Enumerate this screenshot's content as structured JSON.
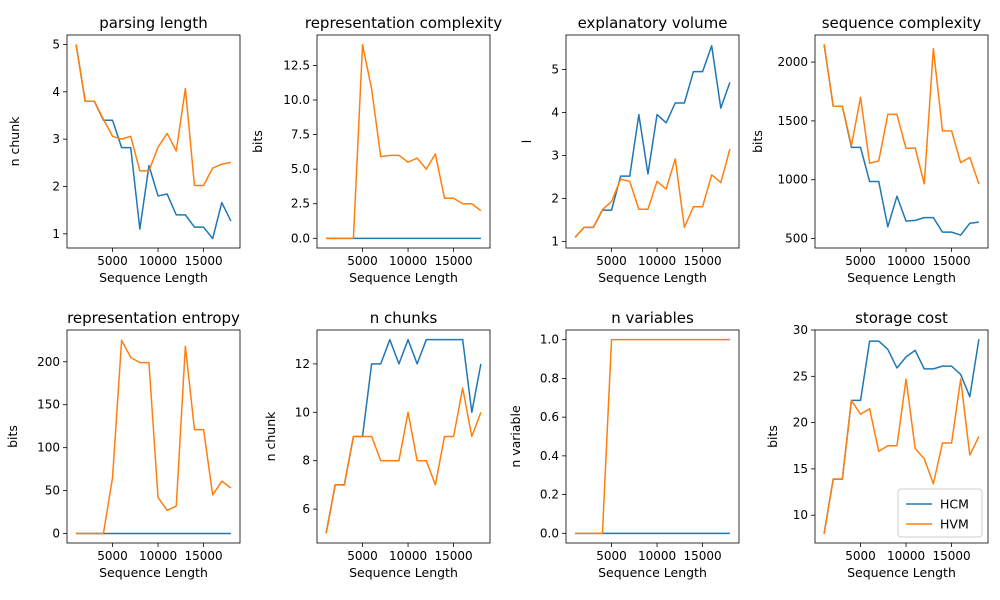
{
  "colors": {
    "HCM": "#1f77b4",
    "HVM": "#ff7f0e"
  },
  "legend": {
    "entries": [
      "HCM",
      "HVM"
    ],
    "placement": "lower right",
    "panel": 7
  },
  "chart_data": [
    {
      "type": "line",
      "title": "parsing length",
      "xlabel": "Sequence Length",
      "ylabel": "n chunk",
      "xlim": [
        0,
        19000
      ],
      "ylim": [
        0.7,
        5.2
      ],
      "xticks": [
        5000,
        10000,
        15000
      ],
      "yticks": [
        1,
        2,
        3,
        4,
        5
      ],
      "x": [
        1000,
        2000,
        3000,
        4000,
        5000,
        6000,
        7000,
        8000,
        9000,
        10000,
        11000,
        12000,
        13000,
        14000,
        15000,
        16000,
        17000,
        18000
      ],
      "series": [
        {
          "name": "HCM",
          "values": [
            5.0,
            3.8,
            3.8,
            3.4,
            3.4,
            2.82,
            2.82,
            1.1,
            2.44,
            1.8,
            1.84,
            1.4,
            1.4,
            1.14,
            1.14,
            0.9,
            1.66,
            1.27
          ]
        },
        {
          "name": "HVM",
          "values": [
            5.0,
            3.8,
            3.8,
            3.42,
            3.06,
            3.0,
            3.06,
            2.33,
            2.33,
            2.83,
            3.12,
            2.75,
            4.07,
            2.02,
            2.02,
            2.39,
            2.47,
            2.51
          ]
        }
      ]
    },
    {
      "type": "line",
      "title": "representation complexity",
      "xlabel": "Sequence Length",
      "ylabel": "bits",
      "xlim": [
        0,
        19000
      ],
      "ylim": [
        -0.7,
        14.7
      ],
      "xticks": [
        5000,
        10000,
        15000
      ],
      "yticks": [
        0.0,
        2.5,
        5.0,
        7.5,
        10.0,
        12.5
      ],
      "ytick_labels": [
        "0.0",
        "2.5",
        "5.0",
        "7.5",
        "10.0",
        "12.5"
      ],
      "x": [
        1000,
        2000,
        3000,
        4000,
        5000,
        6000,
        7000,
        8000,
        9000,
        10000,
        11000,
        12000,
        13000,
        14000,
        15000,
        16000,
        17000,
        18000
      ],
      "series": [
        {
          "name": "HCM",
          "values": [
            0,
            0,
            0,
            0,
            0,
            0,
            0,
            0,
            0,
            0,
            0,
            0,
            0,
            0,
            0,
            0,
            0,
            0
          ]
        },
        {
          "name": "HVM",
          "values": [
            0,
            0,
            0,
            0,
            14.0,
            10.8,
            5.9,
            6.0,
            6.0,
            5.5,
            5.8,
            5.0,
            6.1,
            2.9,
            2.9,
            2.5,
            2.5,
            2.0
          ]
        }
      ]
    },
    {
      "type": "line",
      "title": "explanatory volume",
      "xlabel": "Sequence Length",
      "ylabel": "l",
      "xlim": [
        0,
        19000
      ],
      "ylim": [
        0.85,
        5.8
      ],
      "xticks": [
        5000,
        10000,
        15000
      ],
      "yticks": [
        1,
        2,
        3,
        4,
        5
      ],
      "x": [
        1000,
        2000,
        3000,
        4000,
        5000,
        6000,
        7000,
        8000,
        9000,
        10000,
        11000,
        12000,
        13000,
        14000,
        15000,
        16000,
        17000,
        18000
      ],
      "series": [
        {
          "name": "HCM",
          "values": [
            1.1,
            1.33,
            1.33,
            1.73,
            1.73,
            2.52,
            2.52,
            3.95,
            2.57,
            3.95,
            3.76,
            4.22,
            4.22,
            4.95,
            4.95,
            5.55,
            4.1,
            4.7
          ]
        },
        {
          "name": "HVM",
          "values": [
            1.1,
            1.33,
            1.33,
            1.74,
            1.93,
            2.45,
            2.4,
            1.75,
            1.75,
            2.4,
            2.22,
            2.92,
            1.33,
            1.81,
            1.81,
            2.55,
            2.37,
            3.15
          ]
        }
      ]
    },
    {
      "type": "line",
      "title": "sequence complexity",
      "xlabel": "Sequence Length",
      "ylabel": "bits",
      "xlim": [
        0,
        19000
      ],
      "ylim": [
        420,
        2230
      ],
      "xticks": [
        5000,
        10000,
        15000
      ],
      "yticks": [
        500,
        1000,
        1500,
        2000
      ],
      "x": [
        1000,
        2000,
        3000,
        4000,
        5000,
        6000,
        7000,
        8000,
        9000,
        10000,
        11000,
        12000,
        13000,
        14000,
        15000,
        16000,
        17000,
        18000
      ],
      "series": [
        {
          "name": "HCM",
          "values": [
            2150,
            1625,
            1625,
            1275,
            1275,
            985,
            985,
            600,
            860,
            648,
            655,
            678,
            678,
            555,
            555,
            530,
            630,
            640
          ]
        },
        {
          "name": "HVM",
          "values": [
            2150,
            1625,
            1625,
            1290,
            1700,
            1140,
            1160,
            1555,
            1555,
            1265,
            1270,
            965,
            2115,
            1415,
            1415,
            1145,
            1190,
            965
          ]
        }
      ]
    },
    {
      "type": "line",
      "title": "representation entropy",
      "xlabel": "Sequence Length",
      "ylabel": "bits",
      "xlim": [
        0,
        19000
      ],
      "ylim": [
        -11,
        237
      ],
      "xticks": [
        5000,
        10000,
        15000
      ],
      "yticks": [
        0,
        50,
        100,
        150,
        200
      ],
      "x": [
        1000,
        2000,
        3000,
        4000,
        5000,
        6000,
        7000,
        8000,
        9000,
        10000,
        11000,
        12000,
        13000,
        14000,
        15000,
        16000,
        17000,
        18000
      ],
      "series": [
        {
          "name": "HCM",
          "values": [
            0,
            0,
            0,
            0,
            0,
            0,
            0,
            0,
            0,
            0,
            0,
            0,
            0,
            0,
            0,
            0,
            0,
            0
          ]
        },
        {
          "name": "HVM",
          "values": [
            0,
            0,
            0,
            0,
            65,
            225,
            205,
            199,
            199,
            42,
            27,
            32,
            218,
            121,
            121,
            45,
            61,
            53
          ]
        }
      ]
    },
    {
      "type": "line",
      "title": "n chunks",
      "xlabel": "Sequence Length",
      "ylabel": "n chunk",
      "xlim": [
        0,
        19000
      ],
      "ylim": [
        4.6,
        13.4
      ],
      "xticks": [
        5000,
        10000,
        15000
      ],
      "yticks": [
        6,
        8,
        10,
        12
      ],
      "x": [
        1000,
        2000,
        3000,
        4000,
        5000,
        6000,
        7000,
        8000,
        9000,
        10000,
        11000,
        12000,
        13000,
        14000,
        15000,
        16000,
        17000,
        18000
      ],
      "series": [
        {
          "name": "HCM",
          "values": [
            5,
            7,
            7,
            9,
            9,
            12,
            12,
            13,
            12,
            13,
            12,
            13,
            13,
            13,
            13,
            13,
            10,
            12
          ]
        },
        {
          "name": "HVM",
          "values": [
            5,
            7,
            7,
            9,
            9,
            9,
            8,
            8,
            8,
            10,
            8,
            8,
            7,
            9,
            9,
            11,
            9,
            10
          ]
        }
      ]
    },
    {
      "type": "line",
      "title": "n variables",
      "xlabel": "Sequence Length",
      "ylabel": "n variable",
      "xlim": [
        0,
        19000
      ],
      "ylim": [
        -0.05,
        1.05
      ],
      "xticks": [
        5000,
        10000,
        15000
      ],
      "yticks": [
        0.0,
        0.2,
        0.4,
        0.6,
        0.8,
        1.0
      ],
      "ytick_labels": [
        "0.0",
        "0.2",
        "0.4",
        "0.6",
        "0.8",
        "1.0"
      ],
      "x": [
        1000,
        2000,
        3000,
        4000,
        5000,
        6000,
        7000,
        8000,
        9000,
        10000,
        11000,
        12000,
        13000,
        14000,
        15000,
        16000,
        17000,
        18000
      ],
      "series": [
        {
          "name": "HCM",
          "values": [
            0,
            0,
            0,
            0,
            0,
            0,
            0,
            0,
            0,
            0,
            0,
            0,
            0,
            0,
            0,
            0,
            0,
            0
          ]
        },
        {
          "name": "HVM",
          "values": [
            0,
            0,
            0,
            0,
            1,
            1,
            1,
            1,
            1,
            1,
            1,
            1,
            1,
            1,
            1,
            1,
            1,
            1
          ]
        }
      ]
    },
    {
      "type": "line",
      "title": "storage cost",
      "xlabel": "Sequence Length",
      "ylabel": "bits",
      "xlim": [
        0,
        19000
      ],
      "ylim": [
        7.0,
        30.0
      ],
      "xticks": [
        5000,
        10000,
        15000
      ],
      "yticks": [
        10,
        15,
        20,
        25,
        30
      ],
      "x": [
        1000,
        2000,
        3000,
        4000,
        5000,
        6000,
        7000,
        8000,
        9000,
        10000,
        11000,
        12000,
        13000,
        14000,
        15000,
        16000,
        17000,
        18000
      ],
      "series": [
        {
          "name": "HCM",
          "values": [
            8.0,
            13.9,
            13.9,
            22.4,
            22.4,
            28.8,
            28.8,
            27.9,
            25.9,
            27.1,
            27.8,
            25.8,
            25.8,
            26.1,
            26.1,
            25.2,
            22.8,
            29.0
          ]
        },
        {
          "name": "HVM",
          "values": [
            8.0,
            13.9,
            13.9,
            22.4,
            20.9,
            21.5,
            16.9,
            17.5,
            17.5,
            24.7,
            17.2,
            16.1,
            13.4,
            17.8,
            17.8,
            24.7,
            16.5,
            18.5
          ]
        }
      ]
    }
  ]
}
